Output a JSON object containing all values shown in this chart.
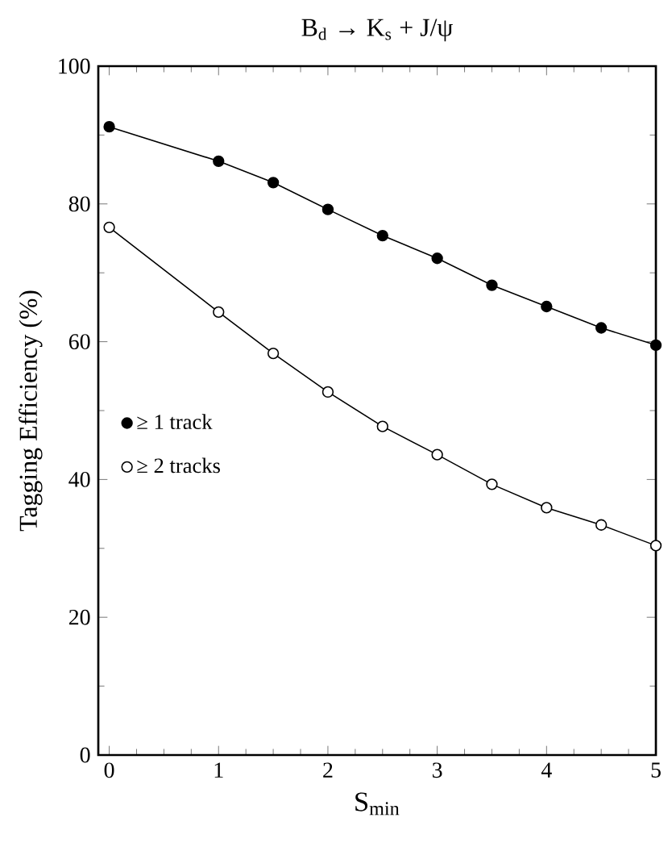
{
  "chart_data": {
    "type": "line",
    "title": "B$_{d}$ → K$_{s}$ + J/ψ",
    "xlabel": "S$_{min}$",
    "ylabel": "Tagging Efficiency (%)",
    "x": [
      0,
      1,
      1.5,
      2,
      2.5,
      3,
      3.5,
      4,
      4.5,
      5
    ],
    "series": [
      {
        "name": "≥ 1 track",
        "color": "#000000",
        "marker": "circle",
        "values": [
          91.2,
          86.2,
          83.1,
          79.2,
          75.4,
          72.1,
          68.2,
          65.1,
          62.0,
          59.5
        ]
      },
      {
        "name": "≥ 2 tracks",
        "color": "#000000",
        "marker": "circle",
        "values": [
          76.6,
          64.3,
          58.3,
          52.7,
          47.7,
          43.6,
          39.3,
          35.9,
          33.4,
          30.4
        ]
      }
    ],
    "xlim": [
      -0.1,
      5
    ],
    "ylim": [
      0,
      100
    ],
    "xticks": [
      0,
      1,
      2,
      3,
      4,
      5
    ],
    "yticks": [
      0,
      20,
      40,
      60,
      80,
      100
    ],
    "grid": false,
    "legend": "left",
    "line_style": "solid"
  }
}
